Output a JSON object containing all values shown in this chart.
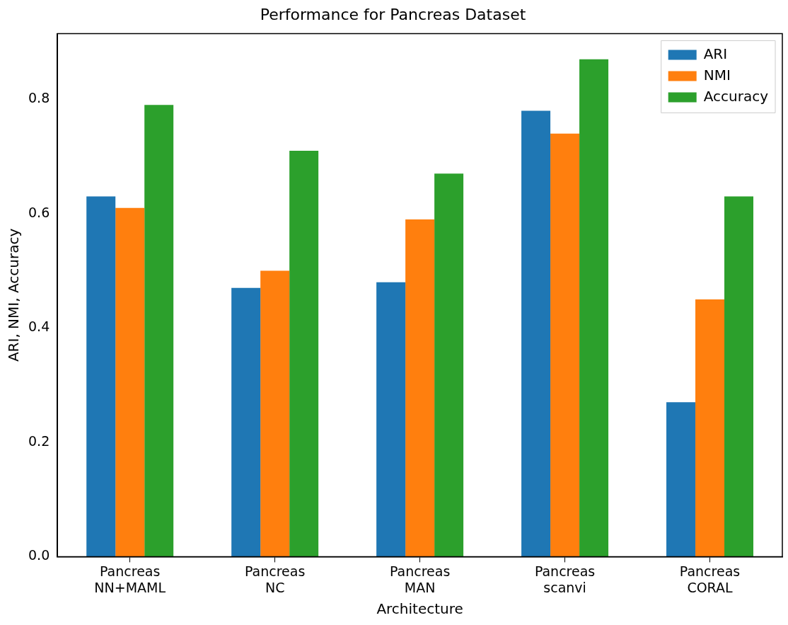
{
  "chart_data": {
    "type": "bar",
    "title": "Performance for Pancreas Dataset",
    "xlabel": "Architecture",
    "ylabel": "ARI, NMI, Accuracy",
    "categories": [
      "Pancreas\nNN+MAML",
      "Pancreas\nNC",
      "Pancreas\nMAN",
      "Pancreas\nscanvi",
      "Pancreas\nCORAL"
    ],
    "series": [
      {
        "name": "ARI",
        "color": "#1f77b4",
        "values": [
          0.63,
          0.47,
          0.48,
          0.78,
          0.27
        ]
      },
      {
        "name": "NMI",
        "color": "#ff7f0e",
        "values": [
          0.61,
          0.5,
          0.59,
          0.74,
          0.45
        ]
      },
      {
        "name": "Accuracy",
        "color": "#2ca02c",
        "values": [
          0.79,
          0.71,
          0.67,
          0.87,
          0.63
        ]
      }
    ],
    "ylim": [
      0,
      0.915
    ],
    "yticks": [
      {
        "value": 0,
        "label": "0.0"
      },
      {
        "value": 0.2,
        "label": "0.2"
      },
      {
        "value": 0.4,
        "label": "0.4"
      },
      {
        "value": 0.6,
        "label": "0.6"
      },
      {
        "value": 0.8,
        "label": "0.8"
      }
    ],
    "grid": false,
    "legend": "top right"
  }
}
